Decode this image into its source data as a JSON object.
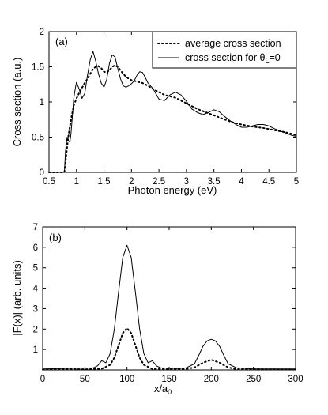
{
  "chart_data": [
    {
      "type": "line",
      "panel_label": "(a)",
      "xlabel": "Photon energy (eV)",
      "ylabel": "Cross section (a.u.)",
      "xlim": [
        0.5,
        5
      ],
      "ylim": [
        0,
        2
      ],
      "xticks": [
        "0.5",
        "1",
        "1.5",
        "2",
        "2.5",
        "3",
        "3.5",
        "4",
        "4.5",
        "5"
      ],
      "yticks": [
        "0",
        "0.5",
        "1",
        "1.5",
        "2"
      ],
      "grid": false,
      "legend_position": "top-right",
      "legend": [
        {
          "label": "average cross section",
          "style": "dotted"
        },
        {
          "label_prefix": "cross section for θ",
          "label_sub": "L",
          "label_suffix": "=0",
          "style": "solid"
        }
      ],
      "series": [
        {
          "style": "dotted",
          "x": [
            0.5,
            0.78,
            0.8,
            0.85,
            0.9,
            0.95,
            1.0,
            1.05,
            1.1,
            1.15,
            1.2,
            1.25,
            1.3,
            1.35,
            1.4,
            1.45,
            1.5,
            1.55,
            1.6,
            1.65,
            1.7,
            1.75,
            1.8,
            1.85,
            1.9,
            1.95,
            2.0,
            2.1,
            2.2,
            2.3,
            2.4,
            2.5,
            2.6,
            2.7,
            2.8,
            2.9,
            3.0,
            3.2,
            3.4,
            3.6,
            3.8,
            4.0,
            4.2,
            4.4,
            4.6,
            4.8,
            5.0
          ],
          "y": [
            0,
            0,
            0.15,
            0.5,
            0.75,
            0.95,
            1.05,
            1.13,
            1.2,
            1.27,
            1.33,
            1.4,
            1.47,
            1.5,
            1.51,
            1.48,
            1.43,
            1.42,
            1.45,
            1.5,
            1.52,
            1.5,
            1.45,
            1.4,
            1.36,
            1.33,
            1.31,
            1.29,
            1.27,
            1.23,
            1.18,
            1.14,
            1.1,
            1.08,
            1.06,
            1.02,
            0.98,
            0.9,
            0.84,
            0.78,
            0.72,
            0.68,
            0.65,
            0.63,
            0.6,
            0.57,
            0.53
          ]
        },
        {
          "style": "solid",
          "x": [
            0.5,
            0.78,
            0.8,
            0.83,
            0.86,
            0.88,
            0.9,
            0.93,
            0.95,
            0.98,
            1.0,
            1.05,
            1.1,
            1.15,
            1.2,
            1.25,
            1.3,
            1.35,
            1.4,
            1.45,
            1.5,
            1.55,
            1.6,
            1.65,
            1.7,
            1.75,
            1.8,
            1.85,
            1.9,
            1.95,
            2.0,
            2.05,
            2.1,
            2.15,
            2.2,
            2.25,
            2.3,
            2.4,
            2.5,
            2.6,
            2.7,
            2.8,
            2.9,
            3.0,
            3.1,
            3.2,
            3.3,
            3.4,
            3.5,
            3.6,
            3.7,
            3.8,
            3.9,
            4.0,
            4.1,
            4.2,
            4.3,
            4.4,
            4.5,
            4.6,
            4.7,
            4.8,
            4.9,
            5.0
          ],
          "y": [
            0,
            0,
            0.3,
            0.5,
            0.44,
            0.43,
            0.55,
            0.85,
            1.05,
            1.2,
            1.28,
            1.18,
            1.05,
            1.12,
            1.38,
            1.6,
            1.72,
            1.58,
            1.4,
            1.27,
            1.21,
            1.32,
            1.55,
            1.67,
            1.64,
            1.48,
            1.33,
            1.23,
            1.21,
            1.23,
            1.26,
            1.3,
            1.38,
            1.43,
            1.42,
            1.35,
            1.27,
            1.18,
            1.04,
            1.02,
            1.1,
            1.14,
            1.1,
            1.01,
            0.9,
            0.85,
            0.82,
            0.85,
            0.89,
            0.86,
            0.79,
            0.73,
            0.68,
            0.64,
            0.64,
            0.66,
            0.68,
            0.68,
            0.66,
            0.62,
            0.59,
            0.56,
            0.53,
            0.51
          ]
        }
      ]
    },
    {
      "type": "line",
      "panel_label": "(b)",
      "xlabel_main": "x/a",
      "xlabel_sub": "0",
      "ylabel": "|F(x)| (arb. units)",
      "xlim": [
        0,
        300
      ],
      "ylim": [
        0,
        7
      ],
      "xticks": [
        "0",
        "50",
        "100",
        "150",
        "200",
        "250",
        "300"
      ],
      "yticks": [
        "1",
        "2",
        "3",
        "4",
        "5",
        "6",
        "7"
      ],
      "grid": false,
      "series": [
        {
          "style": "dotted",
          "x": [
            0,
            50,
            70,
            80,
            85,
            90,
            95,
            100,
            105,
            110,
            115,
            120,
            130,
            170,
            180,
            190,
            200,
            210,
            220,
            230,
            300
          ],
          "y": [
            0.02,
            0.03,
            0.06,
            0.25,
            0.6,
            1.2,
            1.8,
            2.05,
            1.8,
            1.2,
            0.6,
            0.25,
            0.05,
            0.05,
            0.12,
            0.35,
            0.5,
            0.35,
            0.12,
            0.04,
            0.02
          ]
        },
        {
          "style": "solid",
          "x": [
            0,
            40,
            60,
            65,
            70,
            75,
            80,
            85,
            90,
            95,
            100,
            105,
            110,
            115,
            120,
            125,
            130,
            135,
            140,
            160,
            170,
            180,
            185,
            190,
            195,
            200,
            205,
            210,
            215,
            220,
            230,
            250,
            300
          ],
          "y": [
            0.05,
            0.08,
            0.1,
            0.2,
            0.45,
            0.35,
            0.8,
            2.0,
            3.8,
            5.5,
            6.1,
            5.5,
            3.8,
            2.0,
            0.8,
            0.35,
            0.45,
            0.2,
            0.1,
            0.07,
            0.1,
            0.3,
            0.7,
            1.15,
            1.42,
            1.5,
            1.42,
            1.15,
            0.7,
            0.3,
            0.1,
            0.05,
            0.05
          ]
        }
      ]
    }
  ]
}
